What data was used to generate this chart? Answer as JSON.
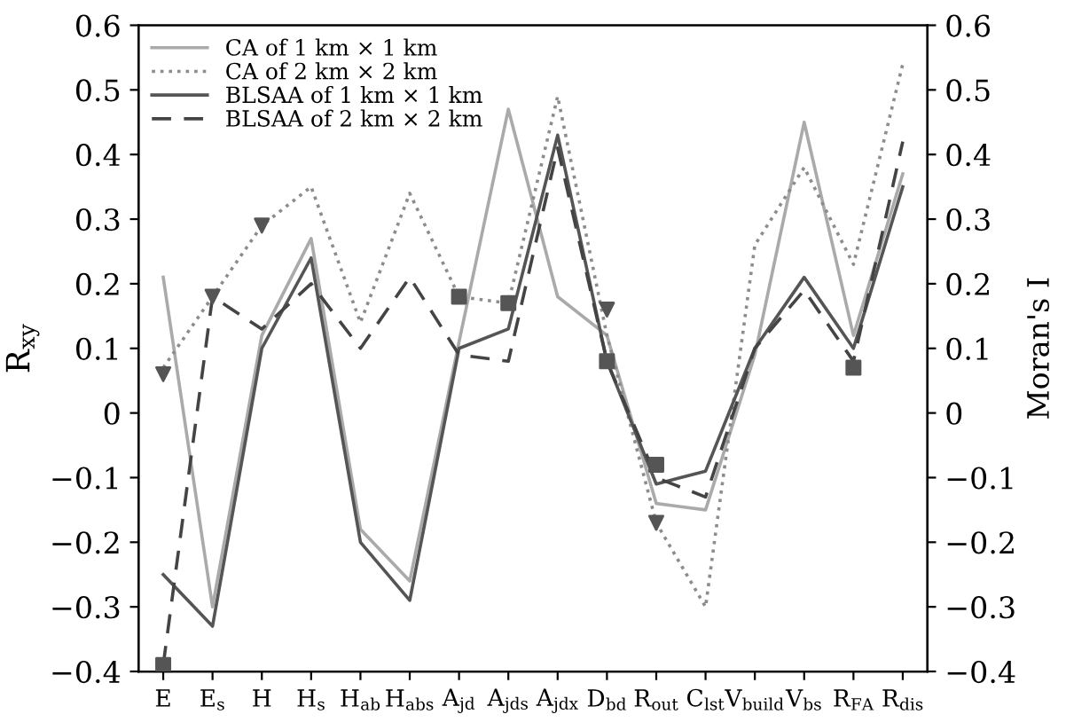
{
  "chart_data": {
    "type": "line",
    "ylabel": "R$_{xy}$",
    "y2label": "Moran's I",
    "categories": [
      "E",
      "E$_{s}$",
      "H",
      "H$_{s}$",
      "H$_{ab}$",
      "H$_{abs}$",
      "A$_{jd}$",
      "A$_{jds}$",
      "A$_{jdx}$",
      "D$_{bd}$",
      "R$_{out}$",
      "C$_{lst}$",
      "V$_{build}$",
      "V$_{bs}$",
      "R$_{FA}$",
      "R$_{dis}$"
    ],
    "series": [
      {
        "name": "CA of 1 km × 1 km",
        "color": "#aaaaaa",
        "line_style": "solid",
        "values": [
          0.21,
          -0.3,
          0.12,
          0.27,
          -0.18,
          -0.26,
          0.11,
          0.47,
          0.18,
          0.12,
          -0.14,
          -0.15,
          0.09,
          0.45,
          0.12,
          0.37
        ]
      },
      {
        "name": "CA of 2 km × 2 km",
        "color": "#8c8c8c",
        "line_style": "dotted",
        "values": [
          0.07,
          0.18,
          0.29,
          0.35,
          0.14,
          0.34,
          0.18,
          0.17,
          0.49,
          0.12,
          -0.17,
          -0.3,
          0.26,
          0.38,
          0.23,
          0.54
        ]
      },
      {
        "name": "BLSAA of 1 km × 1 km",
        "color": "#555555",
        "line_style": "solid",
        "values": [
          -0.25,
          -0.33,
          0.1,
          0.24,
          -0.2,
          -0.29,
          0.1,
          0.13,
          0.43,
          0.08,
          -0.11,
          -0.09,
          0.1,
          0.21,
          0.1,
          0.35
        ]
      },
      {
        "name": "BLSAA of 2 km × 2 km",
        "color": "#444444",
        "line_style": "dashed",
        "values": [
          -0.39,
          0.18,
          0.13,
          0.2,
          0.1,
          0.21,
          0.09,
          0.08,
          0.41,
          0.08,
          -0.1,
          -0.13,
          0.1,
          0.19,
          0.08,
          0.42
        ]
      },
      {
        "type": "scatter",
        "axis": "y2",
        "marker": "triangle",
        "color": "#555555",
        "values": [
          0.06,
          0.18,
          0.29,
          null,
          null,
          null,
          null,
          null,
          null,
          0.16,
          -0.17,
          null,
          null,
          null,
          null,
          null
        ]
      },
      {
        "type": "scatter",
        "axis": "y2",
        "marker": "square",
        "color": "#555555",
        "values": [
          -0.39,
          null,
          null,
          null,
          null,
          null,
          0.18,
          0.17,
          null,
          0.08,
          -0.08,
          null,
          null,
          null,
          0.07,
          null
        ]
      }
    ],
    "ylim": [
      -0.4,
      0.6
    ],
    "yticks": [
      {
        "value": -0.4,
        "label": "−0.4"
      },
      {
        "value": -0.3,
        "label": "−0.3"
      },
      {
        "value": -0.2,
        "label": "−0.2"
      },
      {
        "value": -0.1,
        "label": "−0.1"
      },
      0,
      0.1,
      0.2,
      0.3,
      0.4,
      0.5,
      0.6
    ],
    "y2lim": [
      -0.4,
      0.6
    ],
    "y2ticks": [
      {
        "value": -0.4,
        "label": "−0.4"
      },
      {
        "value": -0.3,
        "label": "−0.3"
      },
      {
        "value": -0.2,
        "label": "−0.2"
      },
      {
        "value": -0.1,
        "label": "−0.1"
      },
      0,
      0.1,
      0.2,
      0.3,
      0.4,
      0.5,
      0.6
    ],
    "legend": "top left",
    "grid": false
  }
}
